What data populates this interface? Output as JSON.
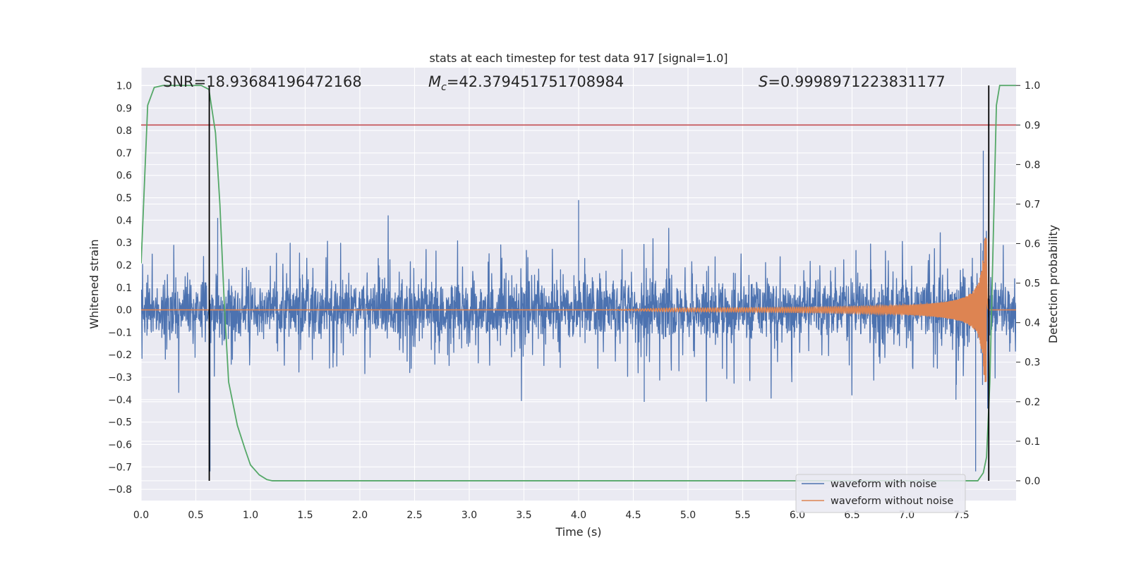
{
  "chart_data": {
    "type": "line",
    "title": "stats at each timestep for test data 917 [signal=1.0]",
    "xlabel": "Time (s)",
    "ylabel": "Whitened strain",
    "y2label": "Detection probability",
    "xlim": [
      0.0,
      8.0
    ],
    "ylim": [
      -0.85,
      1.08
    ],
    "y2lim": [
      -0.05,
      1.045
    ],
    "xticks": [
      0.0,
      0.5,
      1.0,
      1.5,
      2.0,
      2.5,
      3.0,
      3.5,
      4.0,
      4.5,
      5.0,
      5.5,
      6.0,
      6.5,
      7.0,
      7.5
    ],
    "xtick_labels": [
      "0.0",
      "0.5",
      "1.0",
      "1.5",
      "2.0",
      "2.5",
      "3.0",
      "3.5",
      "4.0",
      "4.5",
      "5.0",
      "5.5",
      "6.0",
      "6.5",
      "7.0",
      "7.5"
    ],
    "yticks": [
      1.0,
      0.9,
      0.8,
      0.7,
      0.6,
      0.5,
      0.4,
      0.3,
      0.2,
      0.1,
      0.0,
      -0.1,
      -0.2,
      -0.3,
      -0.4,
      -0.5,
      -0.6,
      -0.7,
      -0.8
    ],
    "ytick_labels": [
      "1.0",
      "0.9",
      "0.8",
      "0.7",
      "0.6",
      "0.5",
      "0.4",
      "0.3",
      "0.2",
      "0.1",
      "0.0",
      "−0.1",
      "−0.2",
      "−0.3",
      "−0.4",
      "−0.5",
      "−0.6",
      "−0.7",
      "−0.8"
    ],
    "y2ticks": [
      1.0,
      0.9,
      0.8,
      0.7,
      0.6,
      0.5,
      0.4,
      0.3,
      0.2,
      0.1,
      0.0
    ],
    "y2tick_labels": [
      "1.0",
      "0.9",
      "0.8",
      "0.7",
      "0.6",
      "0.5",
      "0.4",
      "0.3",
      "0.2",
      "0.1",
      "0.0"
    ],
    "grid": true,
    "legend_position": "lower-right",
    "annotations": {
      "snr": "SNR=18.93684196472168",
      "mc_symbol": "M",
      "mc_sub": "c",
      "mc_value": "=42.379451751708984",
      "s_symbol": "S",
      "s_value": "=0.9998971223831177"
    },
    "series": [
      {
        "name": "waveform with noise",
        "color": "#4c72b0",
        "noise_envelope": {
          "core": [
            -0.15,
            0.2
          ],
          "spike_range": [
            -0.45,
            0.49
          ]
        },
        "notable_peaks": [
          {
            "x": 0.7,
            "y": 0.41
          },
          {
            "x": 0.63,
            "y": -0.72
          },
          {
            "x": 4.0,
            "y": 0.49
          },
          {
            "x": 4.6,
            "y": -0.41
          },
          {
            "x": 7.45,
            "y": -0.4
          },
          {
            "x": 7.63,
            "y": -0.72
          },
          {
            "x": 7.7,
            "y": 0.71
          },
          {
            "x": 7.74,
            "y": -0.44
          }
        ]
      },
      {
        "name": "waveform without noise",
        "color": "#dd8452",
        "description_points": [
          {
            "x": 4.5,
            "amp": 0.003
          },
          {
            "x": 5.5,
            "amp": 0.015
          },
          {
            "x": 6.5,
            "amp": 0.04
          },
          {
            "x": 7.0,
            "amp": 0.08
          },
          {
            "x": 7.5,
            "amp": 0.18
          },
          {
            "x": 7.7,
            "amp": 0.38
          }
        ],
        "merger_time": 7.73
      },
      {
        "axis": "y2",
        "color": "#55a868",
        "x": [
          0.0,
          0.06,
          0.12,
          0.2,
          0.4,
          0.55,
          0.62,
          0.68,
          0.72,
          0.76,
          0.8,
          0.88,
          0.95,
          1.0,
          1.08,
          1.15,
          1.2,
          2.0,
          4.0,
          6.0,
          7.0,
          7.65,
          7.7,
          7.73,
          7.76,
          7.79,
          7.82,
          7.85,
          7.9,
          8.0
        ],
        "y": [
          0.55,
          0.95,
          0.995,
          1.0,
          1.0,
          1.0,
          0.99,
          0.88,
          0.7,
          0.45,
          0.25,
          0.14,
          0.08,
          0.04,
          0.015,
          0.003,
          0.0,
          0.0,
          0.0,
          0.0,
          0.0,
          0.0,
          0.02,
          0.06,
          0.25,
          0.6,
          0.95,
          1.0,
          1.0,
          1.0
        ]
      }
    ],
    "threshold": {
      "axis": "y2",
      "value": 0.9,
      "color": "#c44e52"
    },
    "vertical_markers": [
      {
        "x": 0.623,
        "y_range": [
          0.0,
          1.0
        ],
        "color": "#000000"
      },
      {
        "x": 7.75,
        "y_range": [
          0.0,
          1.0
        ],
        "color": "#000000"
      }
    ]
  }
}
